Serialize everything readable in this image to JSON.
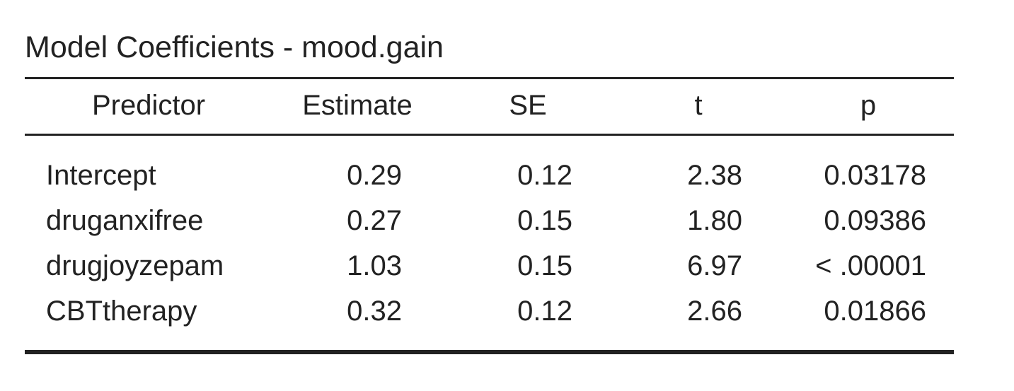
{
  "table": {
    "title": "Model Coefficients - mood.gain",
    "columns": [
      "Predictor",
      "Estimate",
      "SE",
      "t",
      "p"
    ],
    "rows": [
      {
        "predictor": "Intercept",
        "estimate": "0.29",
        "se": "0.12",
        "t": "2.38",
        "p": "0.03178"
      },
      {
        "predictor": "druganxifree",
        "estimate": "0.27",
        "se": "0.15",
        "t": "1.80",
        "p": "0.09386"
      },
      {
        "predictor": "drugjoyzepam",
        "estimate": "1.03",
        "se": "0.15",
        "t": "6.97",
        "p": "< .00001"
      },
      {
        "predictor": "CBTtherapy",
        "estimate": "0.32",
        "se": "0.12",
        "t": "2.66",
        "p": "0.01866"
      }
    ]
  }
}
